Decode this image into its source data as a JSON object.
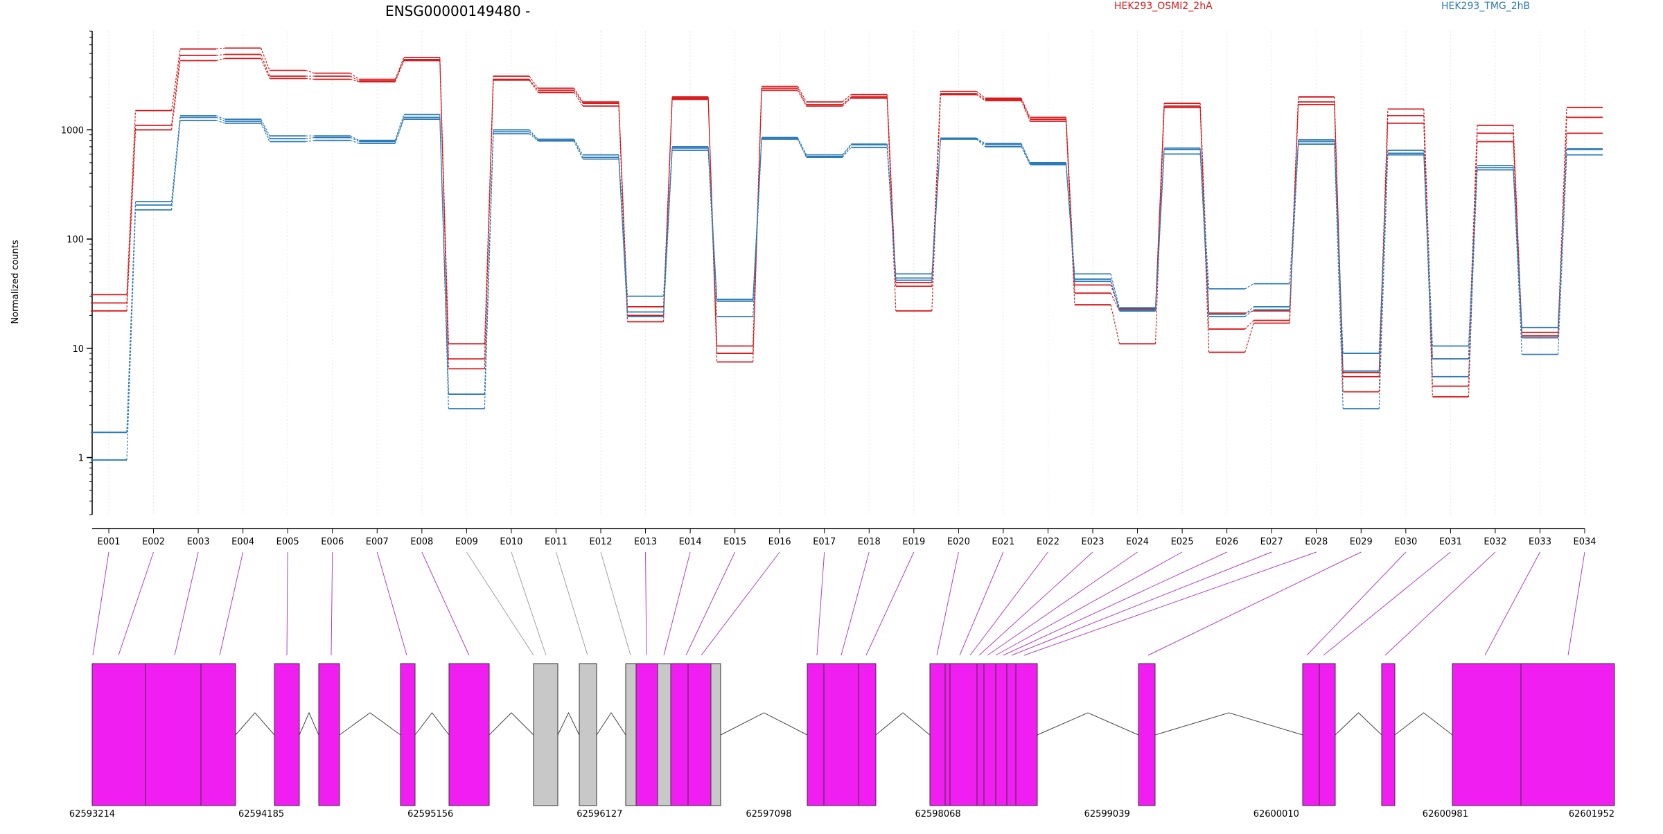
{
  "chart_data": {
    "type": "line",
    "title": "ENSG00000149480 -",
    "ylabel": "Normalized counts",
    "yscale": "log",
    "ylim": [
      0.3,
      8000
    ],
    "yticks": [
      1,
      10,
      100,
      1000
    ],
    "ytick_labels": [
      "1",
      "10",
      "100",
      "1000"
    ],
    "legend": [
      "HEK293_OSMI2_2hA",
      "HEK293_TMG_2hB"
    ],
    "legend_placement": "top-right",
    "colors": {
      "HEK293_OSMI2_2hA": "#d7191c",
      "HEK293_TMG_2hB": "#2c7bb6",
      "exon": "#f01ef0",
      "exon_inactive": "#c8c8c8",
      "link": "#b040c0",
      "link_inactive": "#a0a0a0"
    },
    "categories": [
      "E001",
      "E002",
      "E003",
      "E004",
      "E005",
      "E006",
      "E007",
      "E008",
      "E009",
      "E010",
      "E011",
      "E012",
      "E013",
      "E014",
      "E015",
      "E016",
      "E017",
      "E018",
      "E019",
      "E020",
      "E021",
      "E022",
      "E023",
      "E024",
      "E025",
      "E026",
      "E027",
      "E028",
      "E029",
      "E030",
      "E031",
      "E032",
      "E033",
      "E034"
    ],
    "series": [
      {
        "name": "HEK293_OSMI2_2hA",
        "group": "HEK293_OSMI2_2hA",
        "values": [
          31,
          1500,
          5500,
          5600,
          3500,
          3300,
          2900,
          4600,
          11,
          3100,
          2400,
          1800,
          24,
          2000,
          10.5,
          2500,
          1800,
          2100,
          40,
          2250,
          1950,
          1300,
          38,
          23,
          1750,
          21,
          22,
          2000,
          6,
          1550,
          8,
          1100,
          14,
          1600
        ]
      },
      {
        "name": "HEK293_OSMI2_2hA",
        "group": "HEK293_OSMI2_2hA",
        "values": [
          26,
          1100,
          4800,
          4900,
          3100,
          3100,
          2800,
          4400,
          8,
          2900,
          2300,
          1750,
          20,
          1950,
          9,
          2400,
          1700,
          2000,
          37,
          2150,
          1900,
          1250,
          32,
          22,
          1650,
          15,
          18,
          1800,
          5.5,
          1350,
          4.5,
          930,
          13,
          1300
        ]
      },
      {
        "name": "HEK293_OSMI2_2hA",
        "group": "HEK293_OSMI2_2hA",
        "values": [
          22,
          1000,
          4300,
          4500,
          2950,
          2900,
          2750,
          4300,
          6.5,
          2850,
          2200,
          1650,
          17.5,
          1900,
          7.5,
          2300,
          1650,
          1950,
          22,
          2100,
          1850,
          1200,
          25,
          11,
          1600,
          9.2,
          17,
          1700,
          4,
          1150,
          3.6,
          780,
          12.5,
          930
        ]
      },
      {
        "name": "HEK293_TMG_2hB",
        "group": "HEK293_TMG_2hB",
        "values": [
          1.7,
          220,
          1350,
          1250,
          880,
          880,
          800,
          1380,
          3.8,
          1000,
          820,
          590,
          30,
          700,
          28,
          850,
          590,
          740,
          48,
          840,
          750,
          500,
          48,
          23.5,
          680,
          35,
          39,
          810,
          9,
          650,
          10.5,
          470,
          15.5,
          670
        ]
      },
      {
        "name": "HEK293_TMG_2hB",
        "group": "HEK293_TMG_2hB",
        "values": [
          1.7,
          205,
          1300,
          1200,
          830,
          850,
          780,
          1300,
          3.8,
          960,
          800,
          560,
          21.5,
          680,
          27,
          840,
          570,
          730,
          44,
          830,
          730,
          490,
          43,
          22.5,
          660,
          20.5,
          24,
          780,
          6.2,
          610,
          8,
          450,
          12.5,
          660
        ]
      },
      {
        "name": "HEK293_TMG_2hB",
        "group": "HEK293_TMG_2hB",
        "values": [
          0.95,
          185,
          1220,
          1150,
          780,
          800,
          750,
          1250,
          2.8,
          920,
          790,
          540,
          19.5,
          650,
          19.5,
          820,
          560,
          690,
          42,
          820,
          700,
          480,
          41,
          22,
          600,
          19.5,
          22.5,
          740,
          2.8,
          590,
          5.5,
          430,
          8.8,
          590
        ]
      }
    ]
  },
  "gene_model": {
    "coordinate_labels": [
      "62593214",
      "62594185",
      "62595156",
      "62596127",
      "62597098",
      "62598068",
      "62599039",
      "62600010",
      "62600981",
      "62601952"
    ]
  }
}
